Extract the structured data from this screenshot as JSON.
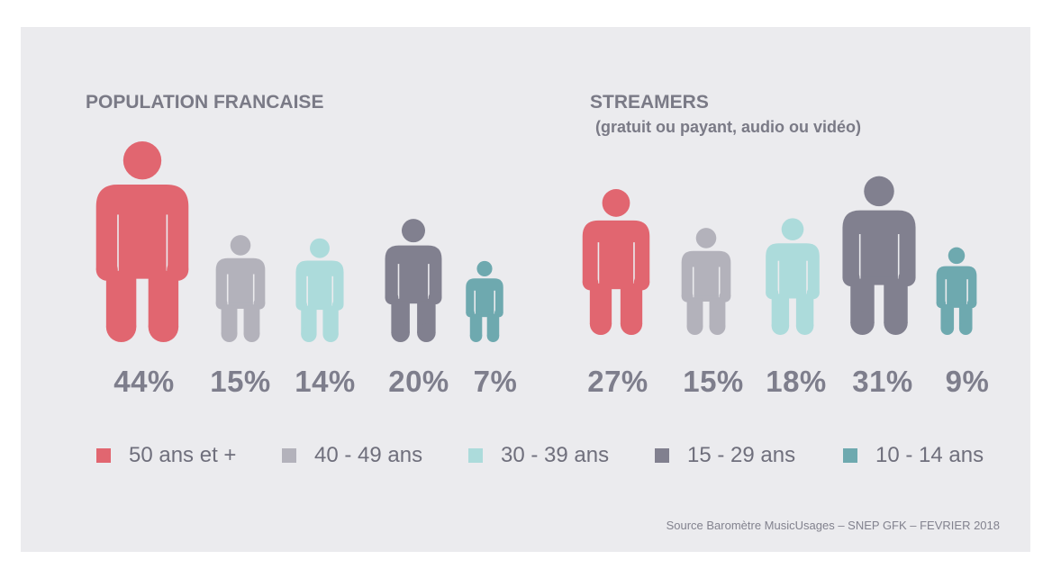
{
  "colors": {
    "age_50_plus": "#e16670",
    "age_40_49": "#b3b2bb",
    "age_30_39": "#acdbdb",
    "age_15_29": "#81808f",
    "age_10_14": "#6ea9af"
  },
  "chart_data": [
    {
      "type": "pictogram",
      "title": "POPULATION FRANCAISE",
      "categories": [
        "50 ans et +",
        "40 - 49 ans",
        "30 - 39 ans",
        "15 - 29 ans",
        "10 - 14 ans"
      ],
      "values": [
        44,
        15,
        14,
        20,
        7
      ],
      "labels": [
        "44%",
        "15%",
        "14%",
        "20%",
        "7%"
      ],
      "unit": "%"
    },
    {
      "type": "pictogram",
      "title": "STREAMERS",
      "subtitle": "(gratuit ou payant, audio ou vidéo)",
      "categories": [
        "50 ans et +",
        "40 - 49 ans",
        "30 - 39 ans",
        "15 - 29 ans",
        "10 - 14 ans"
      ],
      "values": [
        27,
        15,
        18,
        31,
        9
      ],
      "labels": [
        "27%",
        "15%",
        "18%",
        "31%",
        "9%"
      ],
      "unit": "%"
    }
  ],
  "legend": [
    {
      "label": "50 ans et +",
      "color_key": "age_50_plus"
    },
    {
      "label": "40 - 49 ans",
      "color_key": "age_40_49"
    },
    {
      "label": "30 - 39 ans",
      "color_key": "age_30_39"
    },
    {
      "label": "15 - 29 ans",
      "color_key": "age_15_29"
    },
    {
      "label": "10 - 14 ans",
      "color_key": "age_10_14"
    }
  ],
  "source": "Source Baromètre MusicUsages – SNEP GFK – FEVRIER 2018"
}
